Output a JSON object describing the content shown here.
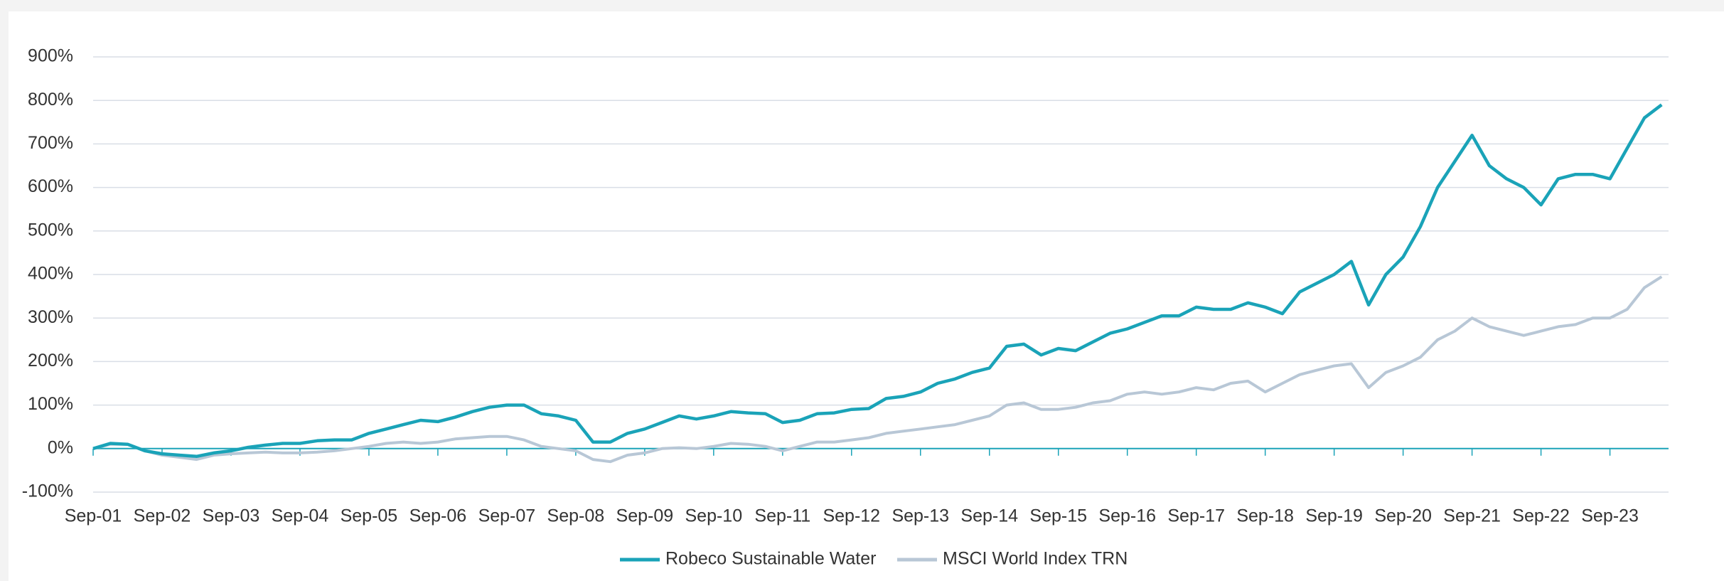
{
  "chart_data": {
    "type": "line",
    "categories": [
      "Sep-01",
      null,
      null,
      null,
      "Sep-02",
      null,
      null,
      null,
      "Sep-03",
      null,
      null,
      null,
      "Sep-04",
      null,
      null,
      null,
      "Sep-05",
      null,
      null,
      null,
      "Sep-06",
      null,
      null,
      null,
      "Sep-07",
      null,
      null,
      null,
      "Sep-08",
      null,
      null,
      null,
      "Sep-09",
      null,
      null,
      null,
      "Sep-10",
      null,
      null,
      null,
      "Sep-11",
      null,
      null,
      null,
      "Sep-12",
      null,
      null,
      null,
      "Sep-13",
      null,
      null,
      null,
      "Sep-14",
      null,
      null,
      null,
      "Sep-15",
      null,
      null,
      null,
      "Sep-16",
      null,
      null,
      null,
      "Sep-17",
      null,
      null,
      null,
      "Sep-18",
      null,
      null,
      null,
      "Sep-19",
      null,
      null,
      null,
      "Sep-20",
      null,
      null,
      null,
      "Sep-21",
      null,
      null,
      null,
      "Sep-22",
      null,
      null,
      null,
      "Sep-23",
      null,
      null,
      null
    ],
    "series": [
      {
        "name": "Robeco Sustainable Water",
        "color": "#1aa3b8",
        "values": [
          0,
          12,
          10,
          -5,
          -12,
          -15,
          -18,
          -10,
          -5,
          3,
          8,
          12,
          12,
          18,
          20,
          20,
          35,
          45,
          55,
          65,
          62,
          72,
          85,
          95,
          100,
          100,
          80,
          75,
          65,
          15,
          15,
          35,
          45,
          60,
          75,
          68,
          75,
          85,
          82,
          80,
          60,
          65,
          80,
          82,
          90,
          92,
          115,
          120,
          130,
          150,
          160,
          175,
          185,
          235,
          240,
          215,
          230,
          225,
          245,
          265,
          275,
          290,
          305,
          305,
          325,
          320,
          320,
          335,
          325,
          310,
          360,
          380,
          400,
          430,
          330,
          400,
          440,
          510,
          600,
          660,
          720,
          650,
          620,
          600,
          560,
          620,
          630,
          630,
          620,
          690,
          760,
          790
        ]
      },
      {
        "name": "MSCI World Index TRN",
        "color": "#b8c7d6",
        "values": [
          0,
          10,
          10,
          -5,
          -15,
          -20,
          -25,
          -15,
          -12,
          -10,
          -8,
          -10,
          -10,
          -8,
          -5,
          0,
          5,
          12,
          15,
          12,
          15,
          22,
          25,
          28,
          28,
          20,
          5,
          0,
          -5,
          -25,
          -30,
          -15,
          -10,
          0,
          2,
          0,
          5,
          12,
          10,
          5,
          -5,
          5,
          15,
          15,
          20,
          25,
          35,
          40,
          45,
          50,
          55,
          65,
          75,
          100,
          105,
          90,
          90,
          95,
          105,
          110,
          125,
          130,
          125,
          130,
          140,
          135,
          150,
          155,
          130,
          150,
          170,
          180,
          190,
          195,
          140,
          175,
          190,
          210,
          250,
          270,
          300,
          280,
          270,
          260,
          270,
          280,
          285,
          300,
          300,
          320,
          370,
          395
        ]
      }
    ],
    "ylim": [
      -100,
      900
    ],
    "yticks": [
      {
        "value": -100,
        "label": "-100%"
      },
      {
        "value": 0,
        "label": "0%"
      },
      {
        "value": 100,
        "label": "100%"
      },
      {
        "value": 200,
        "label": "200%"
      },
      {
        "value": 300,
        "label": "300%"
      },
      {
        "value": 400,
        "label": "400%"
      },
      {
        "value": 500,
        "label": "500%"
      },
      {
        "value": 600,
        "label": "600%"
      },
      {
        "value": 700,
        "label": "700%"
      },
      {
        "value": 800,
        "label": "800%"
      },
      {
        "value": 900,
        "label": "900%"
      }
    ],
    "grid": true,
    "legend": "bottom"
  }
}
